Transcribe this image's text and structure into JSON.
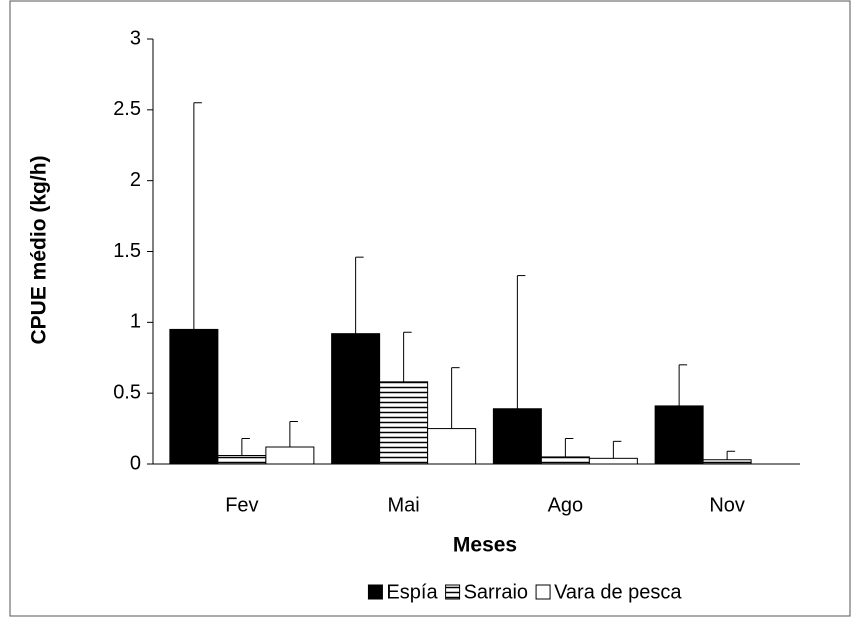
{
  "chart_data": {
    "type": "bar",
    "y_label": "CPUE médio (kg/h)",
    "x_label": "Meses",
    "categories": [
      "Fev",
      "Mai",
      "Ago",
      "Nov"
    ],
    "series": [
      {
        "name": "Espía",
        "color": "#000000",
        "values": [
          0.95,
          0.92,
          0.39,
          0.41
        ],
        "errors": [
          1.6,
          0.54,
          0.94,
          0.29
        ]
      },
      {
        "name": "Sarraio",
        "color": "#ffffff",
        "hatch": "horizontal",
        "values": [
          0.06,
          0.58,
          0.05,
          0.03
        ],
        "errors": [
          0.12,
          0.35,
          0.13,
          0.06
        ]
      },
      {
        "name": "Vara de pesca",
        "color": "#ffffff",
        "values": [
          0.12,
          0.25,
          0.04,
          0
        ],
        "errors": [
          0.18,
          0.43,
          0.12,
          0
        ]
      }
    ],
    "ylim": [
      0,
      3
    ],
    "yticks": [
      0,
      0.5,
      1,
      1.5,
      2,
      2.5,
      3
    ],
    "legend": "bottom"
  }
}
